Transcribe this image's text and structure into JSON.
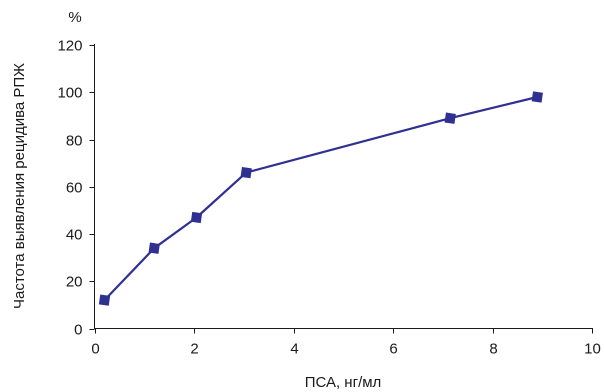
{
  "chart_data": {
    "type": "line",
    "title": "",
    "xlabel": "ПСА, нг/мл",
    "ylabel": "Частота выявления рецидива РПЖ",
    "yunit": "%",
    "xlim": [
      0,
      10
    ],
    "ylim": [
      0,
      120
    ],
    "xticks": [
      0,
      2,
      4,
      6,
      8,
      10
    ],
    "yticks": [
      0,
      20,
      40,
      60,
      80,
      100,
      120
    ],
    "grid": false,
    "legend": "none",
    "series": [
      {
        "marker": "square",
        "color": "#2e3192",
        "x": [
          0.2,
          1.2,
          2.05,
          3.05,
          7.15,
          8.9
        ],
        "y": [
          12,
          34,
          47,
          66,
          89,
          98
        ]
      }
    ]
  }
}
